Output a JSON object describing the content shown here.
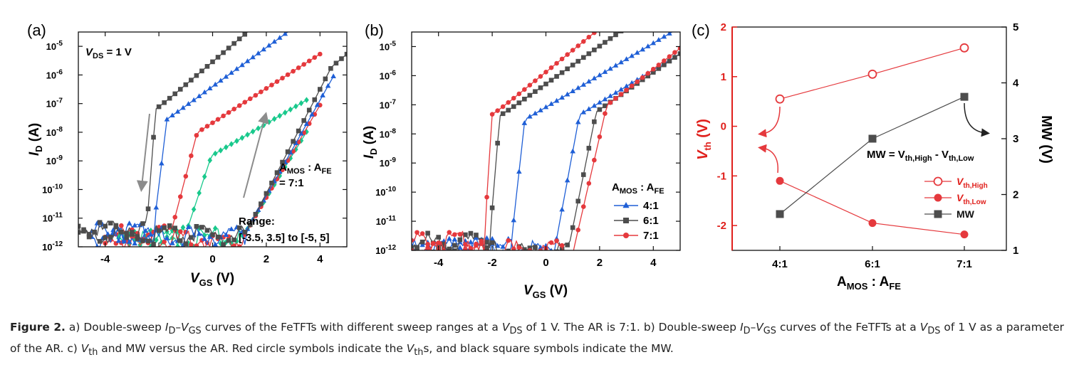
{
  "figure": {
    "caption": {
      "label": "Figure 2.",
      "p1": " a) Double-sweep ",
      "p2": "I",
      "p3": "D",
      "p4": "–",
      "p5": "V",
      "p6": "GS",
      "p7": " curves of the FeTFTs with different sweep ranges at a ",
      "p8": "V",
      "p9": "DS",
      "p10": " of 1 V. The AR is 7:1. b) Double-sweep ",
      "p11": "I",
      "p12": "D",
      "p13": "–",
      "p14": "V",
      "p15": "GS",
      "p16": " curves of the FeTFTs at a ",
      "p17": "V",
      "p18": "DS",
      "p19": " of 1 V as a parameter of the AR. c) ",
      "p20": "V",
      "p21": "th",
      "p22": " and MW versus the AR. Red circle symbols indicate the ",
      "p23": "V",
      "p24": "th",
      "p25": "s, and black square symbols indicate the MW."
    }
  },
  "colors": {
    "blue": "#1f5fd6",
    "black": "#4d4d4d",
    "red": "#e5393d",
    "green": "#19c98c",
    "arrow_gray": "#8c8c8c",
    "axis_red": "#e0201c"
  },
  "chart_data": [
    {
      "panel": "(a)",
      "type": "line",
      "xlabel_main": "V",
      "xlabel_sub": "GS",
      "xlabel_unit": " (V)",
      "ylabel_main": "I",
      "ylabel_sub": "D",
      "ylabel_unit": " (A)",
      "xlim": [
        -5,
        5
      ],
      "ylim_log10": [
        -12,
        -4.5
      ],
      "xticks": [
        -4,
        -2,
        0,
        2,
        4
      ],
      "yticks_exp": [
        -12,
        -11,
        -10,
        -9,
        -8,
        -7,
        -6,
        -5
      ],
      "ytick_base": "10",
      "annotations": {
        "vds_main": "V",
        "vds_sub": "DS",
        "vds_val": " = 1 V",
        "ar_l1a": "A",
        "ar_l1b": "MOS",
        "ar_l1c": " : A",
        "ar_l1d": "FE",
        "ar_l2": "= 7:1",
        "range_l1": "Range:",
        "range_l2": "[-3.5, 3.5] to [-5, 5]"
      },
      "series": [
        {
          "range": [
            -3.5,
            3.5
          ],
          "color": "green",
          "marker": "diamond",
          "end": 3.5,
          "rev": {
            "vth": -1.0,
            "s": 0.35,
            "w": 2.2,
            "k": 0.55,
            "floor": -11.55
          },
          "fwd": {
            "vth": 1.15,
            "s": 0.65,
            "w": 2.9,
            "k": 0.65,
            "floor": -11.6
          }
        },
        {
          "range": [
            -4,
            4
          ],
          "color": "red",
          "marker": "circle",
          "end": 4.0,
          "rev": {
            "vth": -1.55,
            "s": 0.28,
            "w": 2.9,
            "k": 0.6,
            "floor": -11.5
          },
          "fwd": {
            "vth": 1.15,
            "s": 0.62,
            "w": 3.1,
            "k": 0.68,
            "floor": -11.65
          }
        },
        {
          "range": [
            -4.5,
            4.5
          ],
          "color": "blue",
          "marker": "triangle",
          "end": 4.5,
          "rev": {
            "vth": -2.2,
            "s": 0.13,
            "w": 3.5,
            "k": 0.68,
            "floor": -11.4
          },
          "fwd": {
            "vth": 1.2,
            "s": 0.6,
            "w": 3.2,
            "k": 0.72,
            "floor": -11.55
          }
        },
        {
          "range": [
            -5,
            5
          ],
          "color": "black",
          "marker": "square",
          "end": 5.0,
          "rev": {
            "vth": -2.45,
            "s": 0.08,
            "w": 3.8,
            "k": 0.8,
            "floor": -11.3
          },
          "fwd": {
            "vth": 1.25,
            "s": 0.55,
            "w": 3.3,
            "k": 0.78,
            "floor": -11.5
          }
        }
      ]
    },
    {
      "panel": "(b)",
      "type": "line",
      "xlabel_main": "V",
      "xlabel_sub": "GS",
      "xlabel_unit": " (V)",
      "ylabel_main": "I",
      "ylabel_sub": "D",
      "ylabel_unit": " (A)",
      "xlim": [
        -5,
        5
      ],
      "ylim_log10": [
        -12,
        -4.5
      ],
      "xticks": [
        -4,
        -2,
        0,
        2,
        4
      ],
      "yticks_exp": [
        -12,
        -11,
        -10,
        -9,
        -8,
        -7,
        -6,
        -5
      ],
      "ytick_base": "10",
      "legend_title_a": "A",
      "legend_title_b": "MOS",
      "legend_title_c": " : A",
      "legend_title_d": "FE",
      "legend_position": "bottom-right",
      "series": [
        {
          "name": "4:1",
          "color": "blue",
          "marker": "triangle",
          "rev": {
            "vth": -1.3,
            "s": 0.12,
            "w": 4.0,
            "k": 0.55,
            "floor": -11.8
          },
          "fwd": {
            "vth": 0.35,
            "s": 0.2,
            "w": 4.0,
            "k": 0.56,
            "floor": -11.85
          }
        },
        {
          "name": "6:1",
          "color": "black",
          "marker": "square",
          "rev": {
            "vth": -2.1,
            "s": 0.09,
            "w": 4.0,
            "k": 0.65,
            "floor": -11.65
          },
          "fwd": {
            "vth": 0.85,
            "s": 0.22,
            "w": 4.0,
            "k": 0.64,
            "floor": -11.9
          }
        },
        {
          "name": "7:1",
          "color": "red",
          "marker": "circle",
          "rev": {
            "vth": -2.3,
            "s": 0.07,
            "w": 4.0,
            "k": 0.75,
            "floor": -11.6
          },
          "fwd": {
            "vth": 1.05,
            "s": 0.25,
            "w": 4.0,
            "k": 0.72,
            "floor": -11.9
          }
        }
      ]
    },
    {
      "panel": "(c)",
      "type": "line",
      "categories": [
        "4:1",
        "6:1",
        "7:1"
      ],
      "xlabel_a": "A",
      "xlabel_b": "MOS",
      "xlabel_c": " : A",
      "xlabel_d": "FE",
      "ylabel_left_main": "V",
      "ylabel_left_sub": "th",
      "ylabel_left_unit": " (V)",
      "ylabel_right": "MW (V)",
      "ylim_left": [
        -2.5,
        2
      ],
      "ylim_right": [
        1,
        5
      ],
      "yticks_left": [
        -2,
        -1,
        0,
        1,
        2
      ],
      "yticks_right": [
        1,
        2,
        3,
        4,
        5
      ],
      "formula_a": "MW = V",
      "formula_b": "th,High",
      "formula_c": " - V",
      "formula_d": "th,Low",
      "legend_position": "right",
      "series": [
        {
          "name_main": "V",
          "name_sub": "th,High",
          "axis": "left",
          "color": "red",
          "marker": "open-circle",
          "values": [
            0.55,
            1.05,
            1.58
          ]
        },
        {
          "name_main": "V",
          "name_sub": "th,Low",
          "axis": "left",
          "color": "red",
          "marker": "filled-circle",
          "values": [
            -1.1,
            -1.95,
            -2.18
          ]
        },
        {
          "name_main": "MW",
          "name_sub": "",
          "axis": "right",
          "color": "black",
          "marker": "square",
          "values": [
            1.65,
            3.0,
            3.75
          ]
        }
      ]
    }
  ]
}
